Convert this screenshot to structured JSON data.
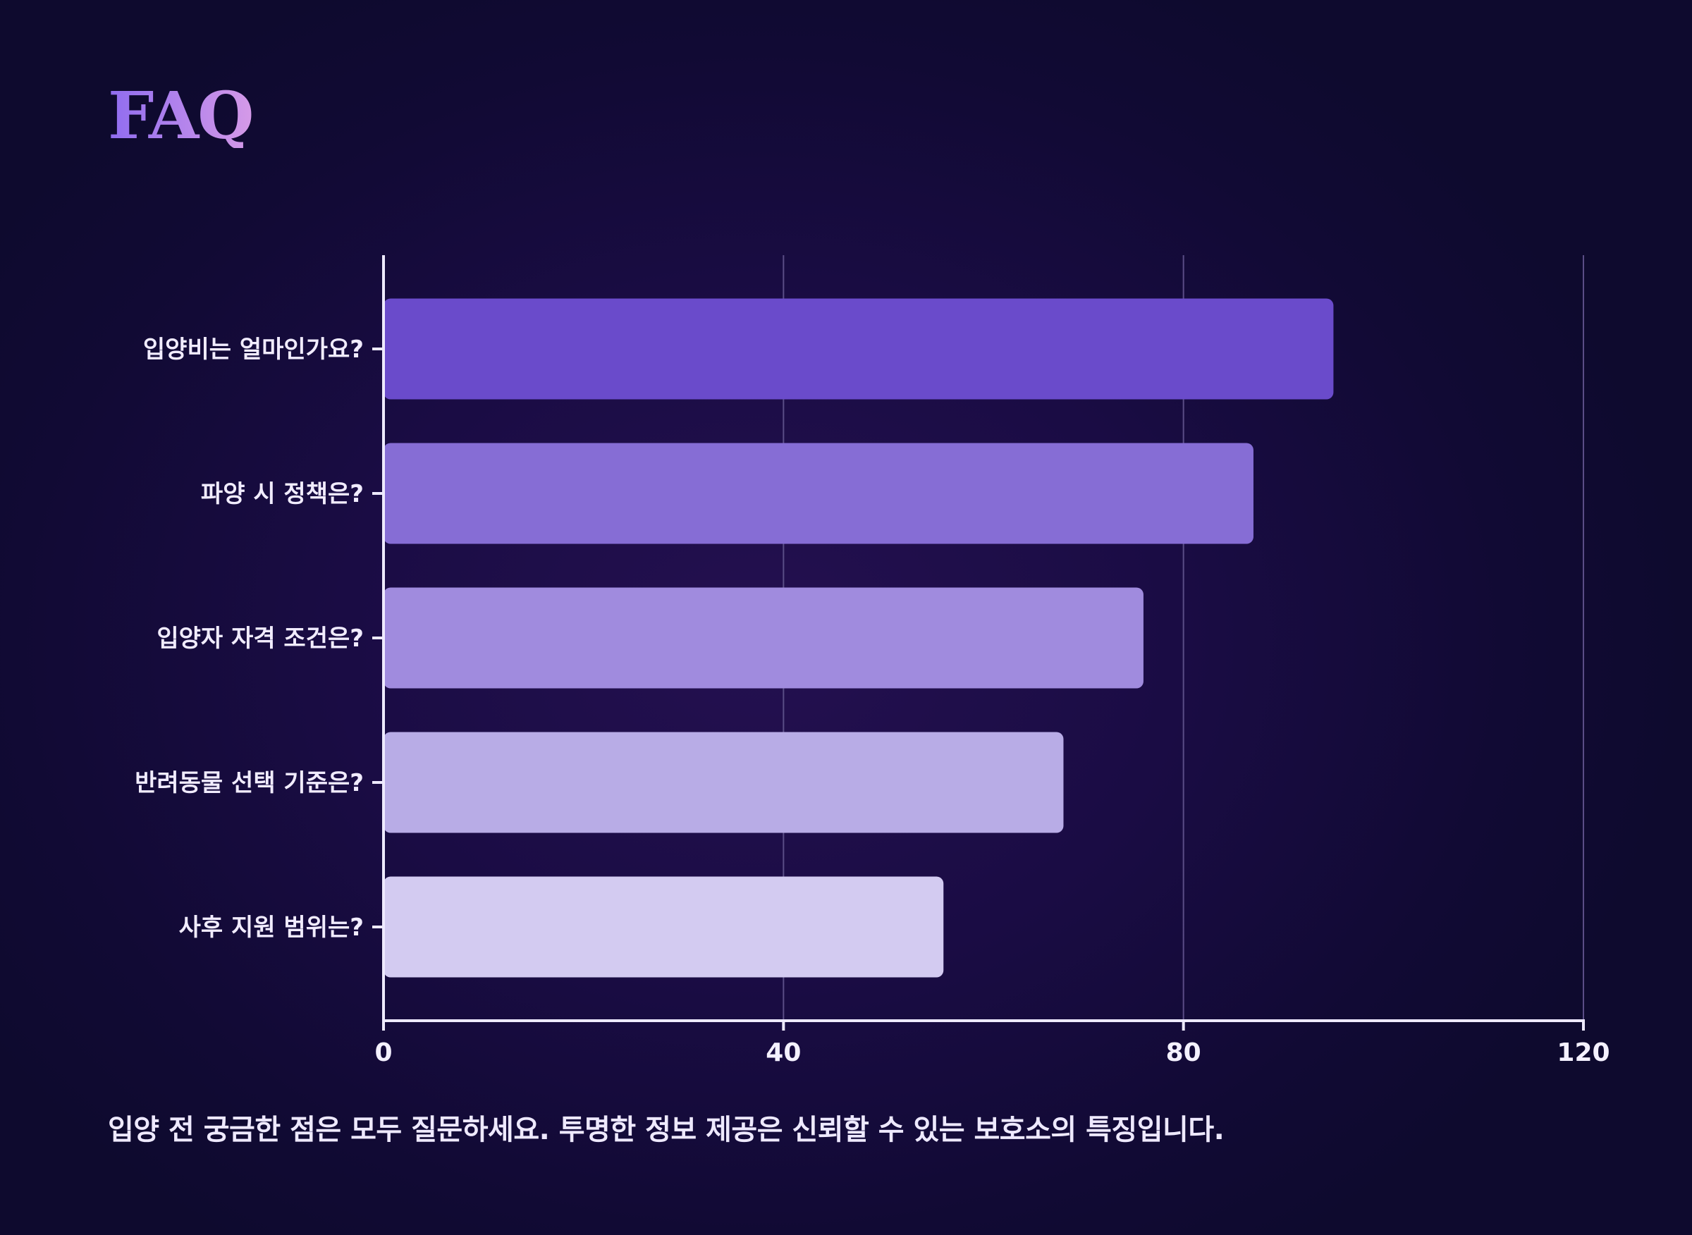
{
  "title": "FAQ",
  "footnote": "입양 전 궁금한 점은 모두 질문하세요. 투명한 정보 제공은 신뢰할 수 있는 보호소의 특징입니다.",
  "chart_data": {
    "type": "bar",
    "orientation": "horizontal",
    "categories": [
      "입양비는 얼마인가요?",
      "파양 시 정책은?",
      "입양자 자격 조건은?",
      "반려동물 선택 기준은?",
      "사후 지원 범위는?"
    ],
    "values": [
      95,
      87,
      76,
      68,
      56
    ],
    "colors": [
      "#6a4bcb",
      "#866dd5",
      "#a08bde",
      "#b8ace6",
      "#d3cbf1"
    ],
    "xlim": [
      0,
      120
    ],
    "xticks": [
      "0",
      "40",
      "80",
      "120"
    ],
    "grid": true,
    "xlabel": "",
    "ylabel": ""
  }
}
